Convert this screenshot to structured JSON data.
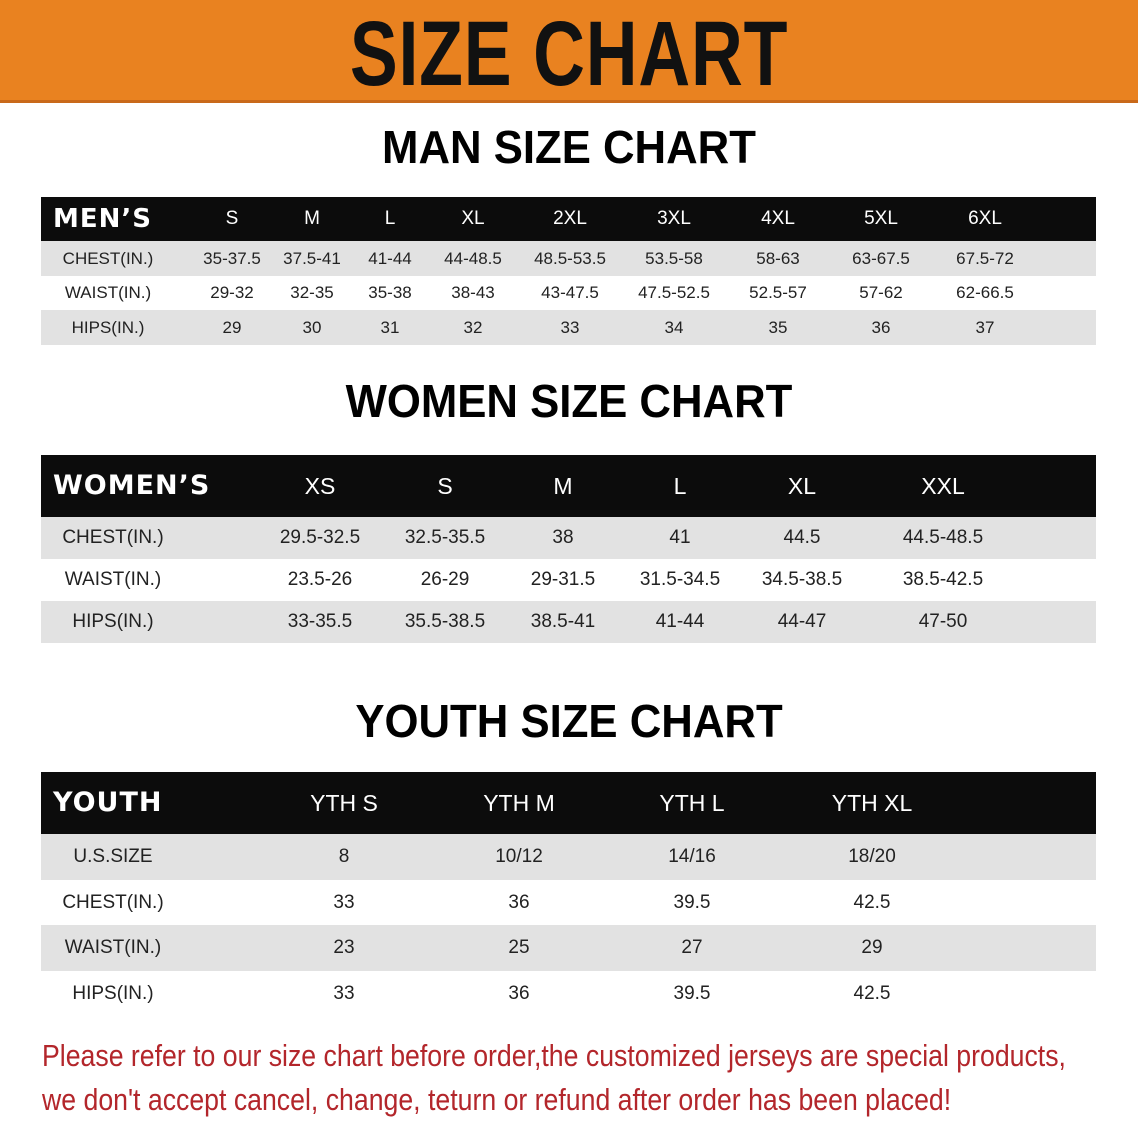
{
  "banner": {
    "title": "SIZE CHART",
    "color": "#E98220"
  },
  "men": {
    "title": "MAN SIZE CHART",
    "header_label": "MEN’S",
    "sizes": [
      "S",
      "M",
      "L",
      "XL",
      "2XL",
      "3XL",
      "4XL",
      "5XL",
      "6XL"
    ],
    "rows": [
      {
        "label": "CHEST(IN.)",
        "values": [
          "35-37.5",
          "37.5-41",
          "41-44",
          "44-48.5",
          "48.5-53.5",
          "53.5-58",
          "58-63",
          "63-67.5",
          "67.5-72"
        ]
      },
      {
        "label": "WAIST(IN.)",
        "values": [
          "29-32",
          "32-35",
          "35-38",
          "38-43",
          "43-47.5",
          "47.5-52.5",
          "52.5-57",
          "57-62",
          "62-66.5"
        ]
      },
      {
        "label": "HIPS(IN.)",
        "values": [
          "29",
          "30",
          "31",
          "32",
          "33",
          "34",
          "35",
          "36",
          "37"
        ]
      }
    ]
  },
  "women": {
    "title": "WOMEN SIZE CHART",
    "header_label": "WOMEN’S",
    "sizes": [
      "XS",
      "S",
      "M",
      "L",
      "XL",
      "XXL"
    ],
    "rows": [
      {
        "label": "CHEST(IN.)",
        "values": [
          "29.5-32.5",
          "32.5-35.5",
          "38",
          "41",
          "44.5",
          "44.5-48.5"
        ]
      },
      {
        "label": "WAIST(IN.)",
        "values": [
          "23.5-26",
          "26-29",
          "29-31.5",
          "31.5-34.5",
          "34.5-38.5",
          "38.5-42.5"
        ]
      },
      {
        "label": "HIPS(IN.)",
        "values": [
          "33-35.5",
          "35.5-38.5",
          "38.5-41",
          "41-44",
          "44-47",
          "47-50"
        ]
      }
    ]
  },
  "youth": {
    "title": "YOUTH SIZE CHART",
    "header_label": "YOUTH",
    "sizes": [
      "YTH S",
      "YTH M",
      "YTH L",
      "YTH XL"
    ],
    "rows": [
      {
        "label": "U.S.SIZE",
        "values": [
          "8",
          "10/12",
          "14/16",
          "18/20"
        ]
      },
      {
        "label": "CHEST(IN.)",
        "values": [
          "33",
          "36",
          "39.5",
          "42.5"
        ]
      },
      {
        "label": "WAIST(IN.)",
        "values": [
          "23",
          "25",
          "27",
          "29"
        ]
      },
      {
        "label": "HIPS(IN.)",
        "values": [
          "33",
          "36",
          "39.5",
          "42.5"
        ]
      }
    ]
  },
  "note": {
    "line1": "Please refer to our size chart before order,the customized jerseys are special products,",
    "line2": "we don't accept cancel, change, teturn or refund after order has been placed!",
    "color": "#B3262B"
  }
}
